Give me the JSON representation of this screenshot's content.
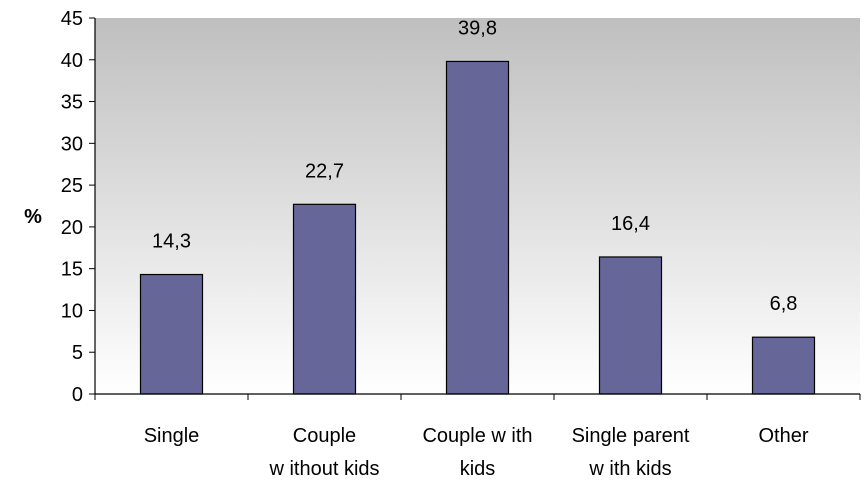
{
  "chart_data": {
    "type": "bar",
    "title": "",
    "xlabel": "",
    "ylabel": "%",
    "ylim": [
      0,
      45
    ],
    "ytick_step": 5,
    "yticks": [
      "0",
      "5",
      "10",
      "15",
      "20",
      "25",
      "30",
      "35",
      "40",
      "45"
    ],
    "categories": [
      [
        "Single"
      ],
      [
        "Couple",
        "w ithout kids"
      ],
      [
        "Couple w ith",
        "kids"
      ],
      [
        "Single parent",
        "w ith kids"
      ],
      [
        "Other"
      ]
    ],
    "values": [
      14.3,
      22.7,
      39.8,
      16.4,
      6.8
    ],
    "data_labels": [
      "14,3",
      "22,7",
      "39,8",
      "16,4",
      "6,8"
    ],
    "grid": false,
    "legend": "none",
    "colors": {
      "bar_fill": "#666699",
      "bar_stroke": "#000000",
      "plot_bg_top": "#bfbfbf",
      "plot_bg_bottom": "#ffffff"
    }
  }
}
